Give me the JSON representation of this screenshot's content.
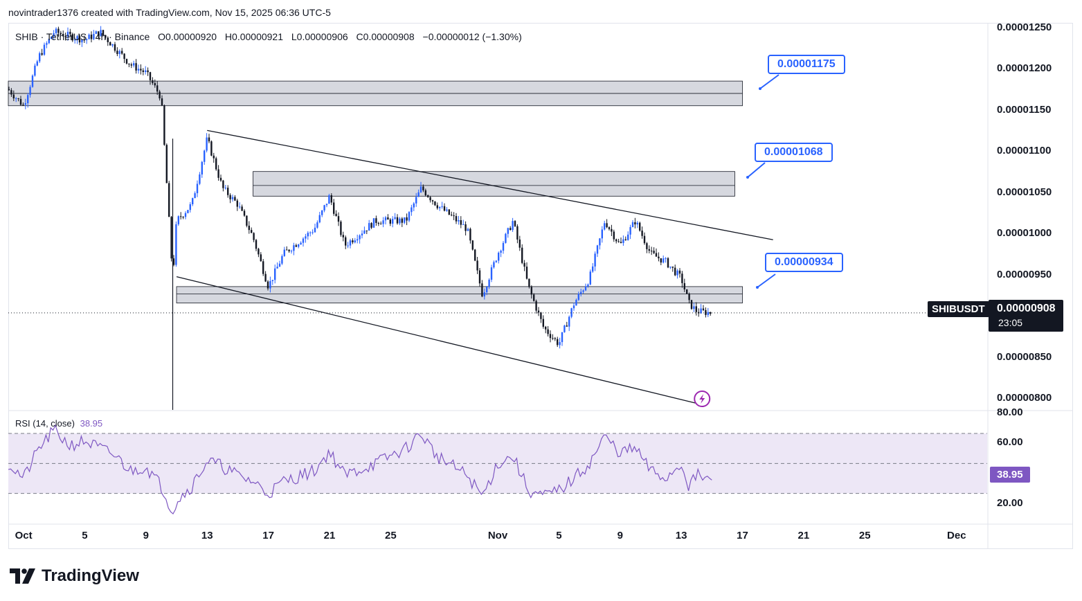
{
  "header": {
    "credit": "novintrader1376 created with TradingView.com, Nov 15, 2025 06:36 UTC-5"
  },
  "legend": {
    "symbol": "SHIB · TetherUS · 4h · Binance",
    "open": "O0.00000920",
    "high": "H0.00000921",
    "low": "L0.00000906",
    "close": "C0.00000908",
    "change": "−0.00000012 (−1.30%)"
  },
  "rsi_legend": {
    "label": "RSI (14, close)",
    "value": "38.95"
  },
  "callouts": [
    {
      "text": "0.00001175"
    },
    {
      "text": "0.00001068"
    },
    {
      "text": "0.00000934"
    }
  ],
  "price_axis": {
    "labels": [
      "0.00001250",
      "0.00001200",
      "0.00001150",
      "0.00001100",
      "0.00001050",
      "0.00001000",
      "0.00000950",
      "0.00000850",
      "0.00000800"
    ]
  },
  "rsi_axis": {
    "labels": [
      "80.00",
      "60.00",
      "20.00"
    ]
  },
  "last": {
    "symbol": "SHIBUSDT",
    "price": "0.00000908",
    "countdown": "23:05"
  },
  "rsi_current": "38.95",
  "time_axis": {
    "labels": [
      "Oct",
      "5",
      "9",
      "13",
      "17",
      "21",
      "25",
      "Nov",
      "5",
      "9",
      "13",
      "17",
      "21",
      "25",
      "Dec"
    ]
  },
  "brand": {
    "name": "TradingView"
  },
  "colors": {
    "up": "#2962ff",
    "down": "#131722",
    "zone": "#d1d4dc",
    "rsi": "#7e57c2",
    "rsi_band": "#ede7f6",
    "callout": "#2962ff"
  },
  "icons": {
    "alert": "lightning-bolt-icon"
  },
  "chart_data": {
    "type": "candlestick",
    "title": "SHIB · TetherUS · 4h · Binance",
    "ylim": [
      7.9e-06,
      1.26e-05
    ],
    "x_range": [
      "2025-09-30",
      "2025-12-03"
    ],
    "price_path": [
      [
        "2025-09-30",
        1.18e-05
      ],
      [
        "2025-10-01",
        1.16e-05
      ],
      [
        "2025-10-02",
        1.22e-05
      ],
      [
        "2025-10-03",
        1.25e-05
      ],
      [
        "2025-10-05",
        1.24e-05
      ],
      [
        "2025-10-06",
        1.25e-05
      ],
      [
        "2025-10-07",
        1.23e-05
      ],
      [
        "2025-10-08",
        1.21e-05
      ],
      [
        "2025-10-09",
        1.2e-05
      ],
      [
        "2025-10-10",
        1.17e-05
      ],
      [
        "2025-10-10T18:00",
        9.5e-06
      ],
      [
        "2025-10-11",
        1.02e-05
      ],
      [
        "2025-10-12",
        1.04e-05
      ],
      [
        "2025-10-13",
        1.12e-05
      ],
      [
        "2025-10-14",
        1.06e-05
      ],
      [
        "2025-10-15",
        1.04e-05
      ],
      [
        "2025-10-16",
        1e-05
      ],
      [
        "2025-10-17",
        9.4e-06
      ],
      [
        "2025-10-18",
        9.8e-06
      ],
      [
        "2025-10-20",
        1.01e-05
      ],
      [
        "2025-10-21",
        1.05e-05
      ],
      [
        "2025-10-22",
        9.9e-06
      ],
      [
        "2025-10-24",
        1.02e-05
      ],
      [
        "2025-10-26",
        1.02e-05
      ],
      [
        "2025-10-27",
        1.06e-05
      ],
      [
        "2025-10-28",
        1.04e-05
      ],
      [
        "2025-10-30",
        1.01e-05
      ],
      [
        "2025-10-31",
        9.3e-06
      ],
      [
        "2025-11-01",
        9.8e-06
      ],
      [
        "2025-11-02",
        1.02e-05
      ],
      [
        "2025-11-03",
        9.4e-06
      ],
      [
        "2025-11-04",
        8.9e-06
      ],
      [
        "2025-11-05",
        8.7e-06
      ],
      [
        "2025-11-06",
        9.2e-06
      ],
      [
        "2025-11-07",
        9.5e-06
      ],
      [
        "2025-11-08",
        1.02e-05
      ],
      [
        "2025-11-09",
        9.9e-06
      ],
      [
        "2025-11-10",
        1.02e-05
      ],
      [
        "2025-11-11",
        9.8e-06
      ],
      [
        "2025-11-12",
        9.7e-06
      ],
      [
        "2025-11-13",
        9.5e-06
      ],
      [
        "2025-11-13T12:00",
        9.2e-06
      ],
      [
        "2025-11-14",
        9.1e-06
      ],
      [
        "2025-11-15",
        9.08e-06
      ]
    ],
    "zones": [
      {
        "from": "2025-09-30",
        "to": "2025-11-17",
        "low": 1.16e-05,
        "high": 1.19e-05,
        "mid": 1.175e-05
      },
      {
        "from": "2025-10-16",
        "to": "2025-11-16T12:00",
        "low": 1.05e-05,
        "high": 1.08e-05,
        "mid": 1.063e-05
      },
      {
        "from": "2025-10-11",
        "to": "2025-11-17",
        "low": 9.2e-06,
        "high": 9.4e-06,
        "mid": 9.31e-06
      }
    ],
    "trendlines": [
      {
        "from": [
          "2025-10-13",
          1.13e-05
        ],
        "to": [
          "2025-11-19",
          9.97e-06
        ]
      },
      {
        "from": [
          "2025-10-11",
          9.52e-06
        ],
        "to": [
          "2025-11-14",
          7.98e-06
        ]
      }
    ],
    "last_price": 9.08e-06,
    "rsi": {
      "name": "RSI (14, close)",
      "ylim": [
        10,
        82
      ],
      "bands": [
        30,
        50,
        70
      ],
      "last": 38.95,
      "path": [
        [
          "2025-09-30",
          50
        ],
        [
          "2025-10-01",
          40
        ],
        [
          "2025-10-02",
          60
        ],
        [
          "2025-10-03",
          72
        ],
        [
          "2025-10-04",
          62
        ],
        [
          "2025-10-05",
          65
        ],
        [
          "2025-10-07",
          55
        ],
        [
          "2025-10-08",
          45
        ],
        [
          "2025-10-09",
          48
        ],
        [
          "2025-10-10",
          35
        ],
        [
          "2025-10-10T18:00",
          18
        ],
        [
          "2025-10-11",
          25
        ],
        [
          "2025-10-12",
          35
        ],
        [
          "2025-10-13",
          52
        ],
        [
          "2025-10-14",
          48
        ],
        [
          "2025-10-15",
          42
        ],
        [
          "2025-10-16",
          38
        ],
        [
          "2025-10-17",
          30
        ],
        [
          "2025-10-18",
          38
        ],
        [
          "2025-10-20",
          45
        ],
        [
          "2025-10-21",
          58
        ],
        [
          "2025-10-22",
          42
        ],
        [
          "2025-10-24",
          50
        ],
        [
          "2025-10-26",
          60
        ],
        [
          "2025-10-27",
          70
        ],
        [
          "2025-10-28",
          55
        ],
        [
          "2025-10-30",
          42
        ],
        [
          "2025-10-31",
          28
        ],
        [
          "2025-11-01",
          50
        ],
        [
          "2025-11-02",
          55
        ],
        [
          "2025-11-03",
          32
        ],
        [
          "2025-11-04",
          28
        ],
        [
          "2025-11-05",
          32
        ],
        [
          "2025-11-06",
          40
        ],
        [
          "2025-11-07",
          50
        ],
        [
          "2025-11-08",
          68
        ],
        [
          "2025-11-09",
          57
        ],
        [
          "2025-11-10",
          60
        ],
        [
          "2025-11-11",
          45
        ],
        [
          "2025-11-12",
          40
        ],
        [
          "2025-11-13",
          50
        ],
        [
          "2025-11-13T12:00",
          35
        ],
        [
          "2025-11-14",
          42
        ],
        [
          "2025-11-15",
          38.95
        ]
      ]
    }
  }
}
